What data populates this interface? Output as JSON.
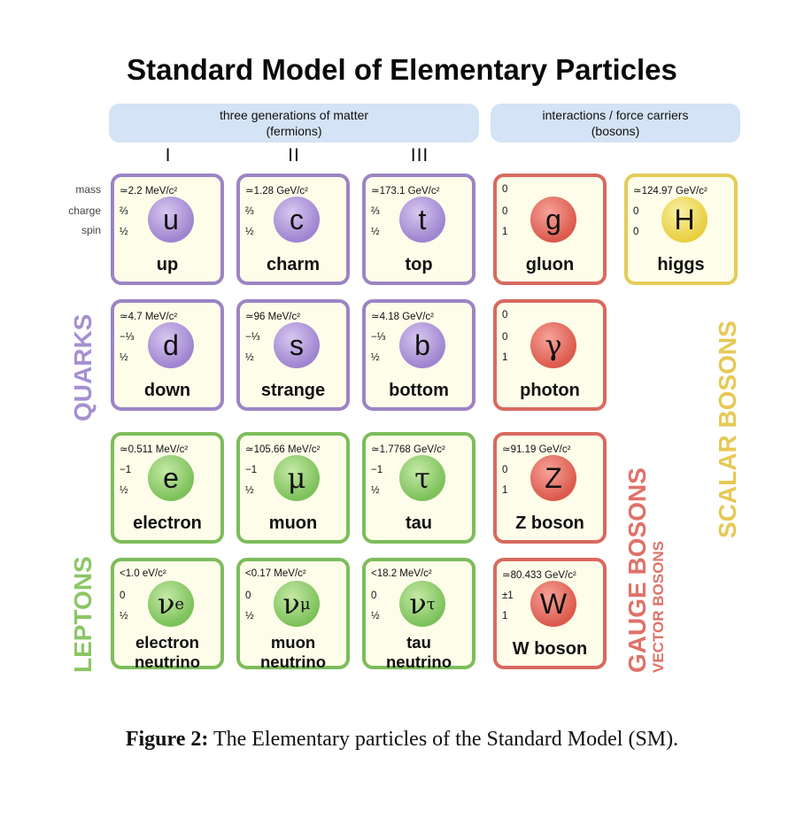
{
  "title": "Standard Model of Elementary Particles",
  "banners": {
    "matter_line1": "three generations of matter",
    "matter_line2": "(fermions)",
    "force_line1": "interactions / force carriers",
    "force_line2": "(bosons)"
  },
  "generations": [
    "I",
    "II",
    "III"
  ],
  "row_labels": {
    "mass": "mass",
    "charge": "charge",
    "spin": "spin"
  },
  "particles": {
    "up": {
      "mass": "≃2.2 MeV/c²",
      "charge": "⅔",
      "spin": "½",
      "symbol": "u",
      "name": "up"
    },
    "charm": {
      "mass": "≃1.28 GeV/c²",
      "charge": "⅔",
      "spin": "½",
      "symbol": "c",
      "name": "charm"
    },
    "top": {
      "mass": "≃173.1 GeV/c²",
      "charge": "⅔",
      "spin": "½",
      "symbol": "t",
      "name": "top"
    },
    "gluon": {
      "mass": "0",
      "charge": "0",
      "spin": "1",
      "symbol": "g",
      "name": "gluon"
    },
    "higgs": {
      "mass": "≃124.97 GeV/c²",
      "charge": "0",
      "spin": "0",
      "symbol": "H",
      "name": "higgs"
    },
    "down": {
      "mass": "≃4.7 MeV/c²",
      "charge": "−⅓",
      "spin": "½",
      "symbol": "d",
      "name": "down"
    },
    "strange": {
      "mass": "≃96 MeV/c²",
      "charge": "−⅓",
      "spin": "½",
      "symbol": "s",
      "name": "strange"
    },
    "bottom": {
      "mass": "≃4.18 GeV/c²",
      "charge": "−⅓",
      "spin": "½",
      "symbol": "b",
      "name": "bottom"
    },
    "photon": {
      "mass": "0",
      "charge": "0",
      "spin": "1",
      "symbol": "γ",
      "name": "photon"
    },
    "electron": {
      "mass": "≃0.511 MeV/c²",
      "charge": "−1",
      "spin": "½",
      "symbol": "e",
      "name": "electron"
    },
    "muon": {
      "mass": "≃105.66 MeV/c²",
      "charge": "−1",
      "spin": "½",
      "symbol": "μ",
      "name": "muon"
    },
    "tau": {
      "mass": "≃1.7768 GeV/c²",
      "charge": "−1",
      "spin": "½",
      "symbol": "τ",
      "name": "tau"
    },
    "z": {
      "mass": "≃91.19 GeV/c²",
      "charge": "0",
      "spin": "1",
      "symbol": "Z",
      "name": "Z boson"
    },
    "nu_e": {
      "mass": "<1.0 eV/c²",
      "charge": "0",
      "spin": "½",
      "symbol": "ν",
      "sub": "e",
      "name1": "electron",
      "name2": "neutrino"
    },
    "nu_mu": {
      "mass": "<0.17 MeV/c²",
      "charge": "0",
      "spin": "½",
      "symbol": "ν",
      "sub": "μ",
      "name1": "muon",
      "name2": "neutrino"
    },
    "nu_tau": {
      "mass": "<18.2 MeV/c²",
      "charge": "0",
      "spin": "½",
      "symbol": "ν",
      "sub": "τ",
      "name1": "tau",
      "name2": "neutrino"
    },
    "w": {
      "mass": "≃80.433 GeV/c²",
      "charge": "±1",
      "spin": "1",
      "symbol": "W",
      "name": "W boson"
    }
  },
  "side_labels": {
    "quarks": "QUARKS",
    "leptons": "LEPTONS",
    "gauge_bosons": "GAUGE BOSONS",
    "vector_bosons": "VECTOR BOSONS",
    "scalar_bosons": "SCALAR BOSONS"
  },
  "colors": {
    "quark": "#9c84c4",
    "lepton": "#7dbd5b",
    "gauge": "#d9695f",
    "scalar": "#e4cc5a",
    "banner": "#d4e3f5"
  },
  "caption": {
    "label": "Figure 2:",
    "text": " The Elementary particles of the Standard Model (SM)."
  }
}
